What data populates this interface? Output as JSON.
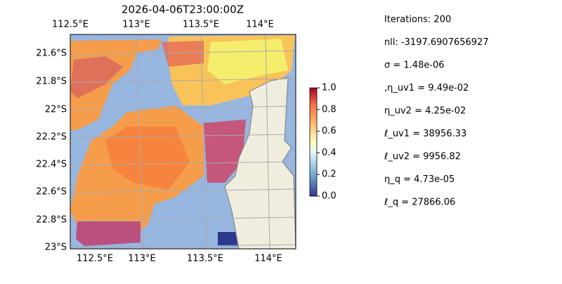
{
  "title": "2026-04-06T23:00:00Z",
  "map": {
    "lon_labels_top": [
      "112.5°E",
      "113°E",
      "113.5°E",
      "114°E"
    ],
    "lon_labels_bottom": [
      "112.5°E",
      "113°E",
      "113.5°E",
      "114°E"
    ],
    "lat_labels": [
      "21.6°S",
      "21.8°S",
      "22°S",
      "22.2°S",
      "22.4°S",
      "22.6°S",
      "22.8°S",
      "23°S"
    ]
  },
  "colorbar": {
    "lim": [
      0,
      1
    ],
    "ticks": [
      {
        "value": 0,
        "label": "0.0"
      },
      {
        "value": 0.2,
        "label": "0.2"
      },
      {
        "value": 0.4,
        "label": "0.4"
      },
      {
        "value": 0.6,
        "label": "0.6"
      },
      {
        "value": 0.8,
        "label": "0.8"
      },
      {
        "value": 1,
        "label": "1.0"
      }
    ]
  },
  "stats": [
    "Iterations: 200",
    "nll: -3197.6907656927",
    "σ = 1.48e-06",
    ",η_uv1 = 9.49e-02",
    "η_uv2 = 4.25e-02",
    "ℓ_uv1 = 38956.33",
    "ℓ_uv2 = 9956.82",
    "η_q = 4.73e-05",
    "ℓ_q = 27866.06"
  ]
}
